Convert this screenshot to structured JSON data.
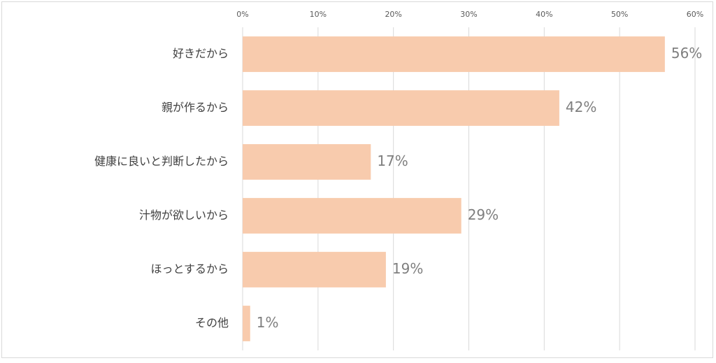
{
  "chart_data": {
    "type": "bar",
    "orientation": "horizontal",
    "title": "",
    "xlabel": "",
    "ylabel": "",
    "categories": [
      "好きだから",
      "親が作るから",
      "健康に良いと判断したから",
      "汁物が欲しいから",
      "ほっとするから",
      "その他"
    ],
    "values": [
      56,
      42,
      17,
      29,
      19,
      1
    ],
    "data_labels": [
      "56%",
      "42%",
      "17%",
      "29%",
      "19%",
      "1%"
    ],
    "xlim": [
      0,
      60
    ],
    "ticks": [
      0,
      10,
      20,
      30,
      40,
      50,
      60
    ],
    "tick_labels": [
      "0%",
      "10%",
      "20%",
      "30%",
      "40%",
      "50%",
      "60%"
    ],
    "axis_position": "top",
    "grid": true,
    "legend": "none",
    "colors": {
      "bar": "#f8cbad",
      "grid": "#d9d9d9",
      "data_label": "#7f7f7f",
      "category_label": "#404040",
      "tick_label": "#595959"
    }
  }
}
